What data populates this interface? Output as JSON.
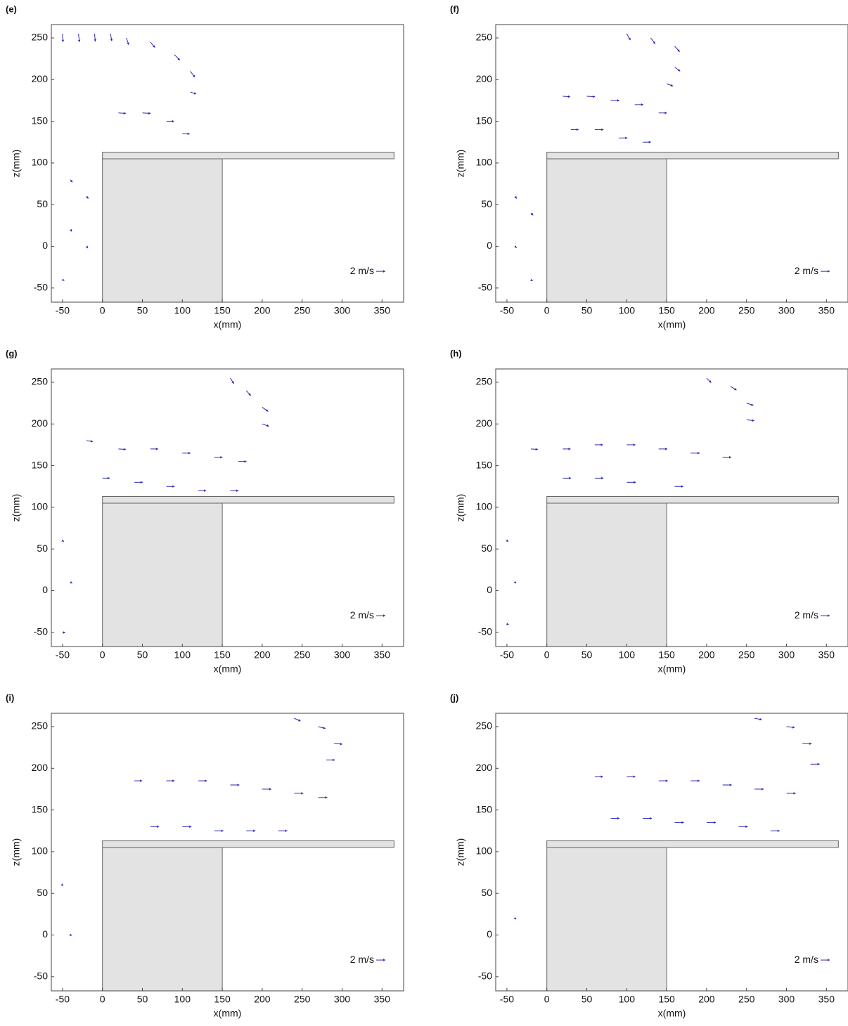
{
  "chart_data": [
    {
      "type": "quiver",
      "panel_label": "(e)",
      "xlabel": "x(mm)",
      "ylabel": "z(mm)",
      "xlim": [
        -64,
        377
      ],
      "ylim": [
        -67,
        266
      ],
      "xticks": [
        -50,
        0,
        50,
        100,
        150,
        200,
        250,
        300,
        350
      ],
      "yticks": [
        -50,
        0,
        50,
        100,
        150,
        200,
        250
      ],
      "color": "#2a2ab0",
      "ref_label": "2 m/s",
      "ref_value": 2,
      "x": [
        -50,
        -30,
        -10,
        10,
        30,
        60,
        90,
        110,
        110,
        20,
        50,
        80,
        100,
        -40,
        -20,
        -40,
        -20,
        -50
      ],
      "z": [
        255,
        255,
        255,
        255,
        250,
        245,
        230,
        210,
        185,
        160,
        160,
        150,
        135,
        80,
        60,
        20,
        0,
        -40
      ],
      "u": [
        0.1,
        0.2,
        0.2,
        0.3,
        0.5,
        1.0,
        1.2,
        1.0,
        1.3,
        1.6,
        1.8,
        1.7,
        1.6,
        0.4,
        0.4,
        0.3,
        0.3,
        0.4
      ],
      "w": [
        -1.8,
        -1.8,
        -1.7,
        -1.6,
        -1.5,
        -1.2,
        -1.2,
        -1.3,
        -0.4,
        -0.1,
        -0.1,
        0,
        0,
        -0.6,
        -0.5,
        -0.4,
        -0.4,
        -0.2
      ]
    },
    {
      "type": "quiver",
      "panel_label": "(f)",
      "xlabel": "x(mm)",
      "ylabel": "z(mm)",
      "xlim": [
        -64,
        377
      ],
      "ylim": [
        -67,
        266
      ],
      "xticks": [
        -50,
        0,
        50,
        100,
        150,
        200,
        250,
        300,
        350
      ],
      "yticks": [
        -50,
        0,
        50,
        100,
        150,
        200,
        250
      ],
      "color": "#2a2ab0",
      "ref_label": "2 m/s",
      "ref_value": 2,
      "x": [
        100,
        130,
        160,
        160,
        150,
        20,
        50,
        80,
        110,
        140,
        30,
        60,
        90,
        120,
        -40,
        -20,
        -40,
        -20
      ],
      "z": [
        255,
        250,
        240,
        215,
        195,
        180,
        180,
        175,
        170,
        160,
        140,
        140,
        130,
        125,
        60,
        40,
        0,
        -40
      ],
      "u": [
        0.8,
        1.0,
        1.1,
        1.2,
        1.4,
        1.6,
        1.8,
        1.9,
        1.9,
        1.8,
        1.7,
        1.9,
        1.9,
        1.8,
        0.4,
        0.5,
        0.4,
        0.4
      ],
      "w": [
        -1.4,
        -1.3,
        -1.2,
        -0.9,
        -0.5,
        -0.1,
        -0.1,
        0,
        0,
        0,
        0,
        0,
        0,
        0,
        -0.5,
        -0.5,
        -0.3,
        -0.3
      ]
    },
    {
      "type": "quiver",
      "panel_label": "(g)",
      "xlabel": "x(mm)",
      "ylabel": "z(mm)",
      "xlim": [
        -64,
        377
      ],
      "ylim": [
        -67,
        266
      ],
      "xticks": [
        -50,
        0,
        50,
        100,
        150,
        200,
        250,
        300,
        350
      ],
      "yticks": [
        -50,
        0,
        50,
        100,
        150,
        200,
        250
      ],
      "color": "#2a2ab0",
      "ref_label": "2 m/s",
      "ref_value": 2,
      "x": [
        160,
        180,
        200,
        200,
        -20,
        20,
        60,
        100,
        140,
        170,
        0,
        40,
        80,
        120,
        160,
        -50,
        -40,
        -50
      ],
      "z": [
        255,
        240,
        220,
        200,
        180,
        170,
        170,
        165,
        160,
        155,
        135,
        130,
        125,
        120,
        120,
        60,
        10,
        -50
      ],
      "u": [
        0.8,
        1.0,
        1.3,
        1.5,
        1.4,
        1.6,
        1.7,
        1.8,
        1.8,
        1.8,
        1.6,
        1.8,
        1.8,
        1.7,
        1.8,
        0.3,
        0.4,
        0.6
      ],
      "w": [
        -1.2,
        -1.1,
        -0.9,
        -0.5,
        -0.2,
        -0.1,
        0,
        0,
        0,
        0,
        0,
        0,
        0,
        0,
        0,
        -0.2,
        -0.2,
        -0.1
      ]
    },
    {
      "type": "quiver",
      "panel_label": "(h)",
      "xlabel": "x(mm)",
      "ylabel": "z(mm)",
      "xlim": [
        -64,
        377
      ],
      "ylim": [
        -67,
        266
      ],
      "xticks": [
        -50,
        0,
        50,
        100,
        150,
        200,
        250,
        300,
        350
      ],
      "yticks": [
        -50,
        0,
        50,
        100,
        150,
        200,
        250
      ],
      "color": "#2a2ab0",
      "ref_label": "2 m/s",
      "ref_value": 2,
      "x": [
        200,
        230,
        250,
        250,
        -20,
        20,
        60,
        100,
        140,
        180,
        220,
        20,
        60,
        100,
        160,
        -50,
        -40,
        -50
      ],
      "z": [
        255,
        245,
        225,
        205,
        170,
        170,
        175,
        175,
        170,
        165,
        160,
        135,
        135,
        130,
        125,
        60,
        10,
        -40
      ],
      "u": [
        1.0,
        1.3,
        1.5,
        1.7,
        1.5,
        1.7,
        1.8,
        1.9,
        1.9,
        2.0,
        1.9,
        1.8,
        1.9,
        2.0,
        1.9,
        0.3,
        0.3,
        0.4
      ],
      "w": [
        -1.0,
        -0.8,
        -0.5,
        -0.2,
        -0.1,
        0,
        0,
        0,
        0,
        0,
        0,
        0,
        0,
        0,
        0,
        -0.2,
        -0.2,
        -0.1
      ]
    },
    {
      "type": "quiver",
      "panel_label": "(i)",
      "xlabel": "x(mm)",
      "ylabel": "z(mm)",
      "xlim": [
        -64,
        377
      ],
      "ylim": [
        -67,
        266
      ],
      "xticks": [
        -50,
        0,
        50,
        100,
        150,
        200,
        250,
        300,
        350
      ],
      "yticks": [
        -50,
        0,
        50,
        100,
        150,
        200,
        250
      ],
      "color": "#2a2ab0",
      "ref_label": "2 m/s",
      "ref_value": 2,
      "x": [
        240,
        270,
        290,
        280,
        40,
        80,
        120,
        160,
        200,
        240,
        270,
        60,
        100,
        140,
        180,
        220,
        -50,
        -40
      ],
      "z": [
        260,
        250,
        230,
        210,
        185,
        185,
        185,
        180,
        175,
        170,
        165,
        130,
        130,
        125,
        125,
        125,
        60,
        0
      ],
      "u": [
        1.4,
        1.6,
        1.8,
        1.9,
        1.7,
        1.8,
        1.9,
        2.0,
        2.0,
        2.0,
        2.0,
        1.9,
        2.0,
        2.0,
        2.0,
        2.0,
        0.2,
        0.3
      ],
      "w": [
        -0.6,
        -0.4,
        -0.2,
        0,
        0,
        0,
        0,
        0,
        0,
        0,
        0,
        0,
        0,
        0,
        0,
        0,
        -0.1,
        -0.1
      ]
    },
    {
      "type": "quiver",
      "panel_label": "(j)",
      "xlabel": "x(mm)",
      "ylabel": "z(mm)",
      "xlim": [
        -64,
        377
      ],
      "ylim": [
        -67,
        266
      ],
      "xticks": [
        -50,
        0,
        50,
        100,
        150,
        200,
        250,
        300,
        350
      ],
      "yticks": [
        -50,
        0,
        50,
        100,
        150,
        200,
        250
      ],
      "color": "#2a2ab0",
      "ref_label": "2 m/s",
      "ref_value": 2,
      "x": [
        260,
        300,
        320,
        330,
        60,
        100,
        140,
        180,
        220,
        260,
        300,
        80,
        120,
        160,
        200,
        240,
        280,
        -40
      ],
      "z": [
        260,
        250,
        230,
        205,
        190,
        190,
        185,
        185,
        180,
        175,
        170,
        140,
        140,
        135,
        135,
        130,
        125,
        20
      ],
      "u": [
        1.6,
        1.8,
        2.0,
        2.0,
        1.8,
        1.9,
        2.0,
        2.0,
        2.0,
        2.0,
        2.0,
        1.9,
        2.0,
        2.0,
        2.0,
        2.0,
        2.0,
        0.3
      ],
      "w": [
        -0.3,
        -0.2,
        -0.1,
        0,
        0,
        0,
        0,
        0,
        0,
        0,
        0,
        0,
        0,
        0,
        0,
        0,
        0,
        -0.2
      ]
    }
  ]
}
